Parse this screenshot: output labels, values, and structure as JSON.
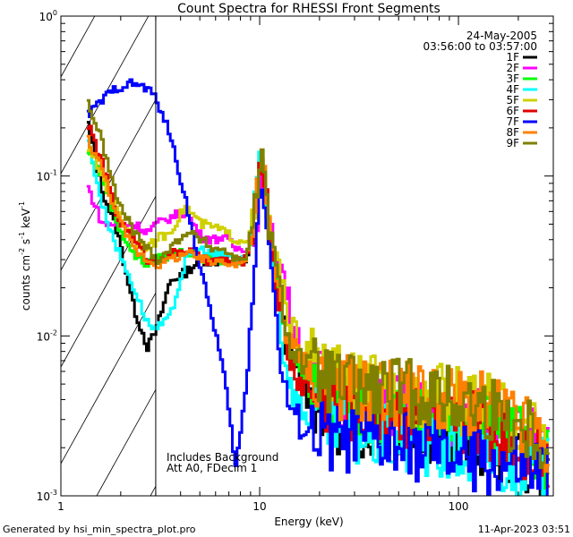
{
  "chart_data": {
    "type": "line",
    "title": "Count Spectra for RHESSI Front Segments",
    "xlabel": "Energy (keV)",
    "ylabel_main": "counts cm",
    "ylabel_sup1": "-2",
    "ylabel_mid": " s",
    "ylabel_sup2": "-1",
    "ylabel_mid2": " keV",
    "ylabel_sup3": "-1",
    "xscale": "log",
    "yscale": "log",
    "xlim": [
      1,
      300
    ],
    "ylim": [
      0.001,
      1
    ],
    "x_ticks": [
      {
        "value": 1,
        "label": "1"
      },
      {
        "value": 10,
        "label": "10"
      },
      {
        "value": 100,
        "label": "100"
      }
    ],
    "y_ticks": [
      {
        "value": 1,
        "base": "10",
        "exp": "0"
      },
      {
        "value": 0.1,
        "base": "10",
        "exp": "-1"
      },
      {
        "value": 0.01,
        "base": "10",
        "exp": "-2"
      },
      {
        "value": 0.001,
        "base": "10",
        "exp": "-3"
      }
    ],
    "attenuated_region": {
      "xmin": 1,
      "xmax": 3
    },
    "legend_date": "24-May-2005",
    "legend_time": "03:56:00 to 03:57:00",
    "notes": [
      "Includes Background",
      "Att A0, FDecim 1"
    ],
    "series": [
      {
        "name": "1F",
        "color": "#000000",
        "lx": [
          1.35,
          1.6,
          1.9,
          2.3,
          2.7,
          3,
          3.5,
          4.2,
          5,
          5.8,
          6.5,
          7.5,
          8.5,
          9.3,
          10,
          10.4,
          11,
          12,
          13,
          14,
          16,
          18,
          21,
          24,
          28,
          33,
          40,
          50,
          60,
          75,
          90,
          110,
          140,
          180,
          230,
          280
        ],
        "ly": [
          0.21,
          0.08,
          0.045,
          0.015,
          0.0085,
          0.011,
          0.022,
          0.025,
          0.03,
          0.029,
          0.03,
          0.028,
          0.03,
          0.05,
          0.13,
          0.095,
          0.05,
          0.023,
          0.012,
          0.007,
          0.005,
          0.004,
          0.0035,
          0.003,
          0.003,
          0.0028,
          0.0028,
          0.0026,
          0.0025,
          0.0026,
          0.0024,
          0.0023,
          0.0021,
          0.0019,
          0.0016,
          0.0013
        ]
      },
      {
        "name": "2F",
        "color": "#ff00ff",
        "lx": [
          1.35,
          1.6,
          1.9,
          2.3,
          2.7,
          3,
          3.5,
          4.2,
          5,
          5.8,
          6.5,
          7.5,
          8.5,
          9.3,
          10,
          10.4,
          11,
          12,
          13,
          14,
          16,
          18,
          21,
          24,
          28,
          33,
          40,
          50,
          60,
          75,
          90,
          110,
          140,
          180,
          230,
          280
        ],
        "ly": [
          0.085,
          0.05,
          0.05,
          0.05,
          0.045,
          0.05,
          0.055,
          0.06,
          0.042,
          0.04,
          0.042,
          0.035,
          0.036,
          0.04,
          0.09,
          0.085,
          0.045,
          0.035,
          0.025,
          0.014,
          0.009,
          0.006,
          0.005,
          0.0045,
          0.004,
          0.0038,
          0.0038,
          0.0036,
          0.0034,
          0.0033,
          0.0032,
          0.003,
          0.0028,
          0.0025,
          0.0022,
          0.0019
        ]
      },
      {
        "name": "3F",
        "color": "#00ff00",
        "lx": [
          1.35,
          1.6,
          1.9,
          2.3,
          2.7,
          3,
          3.5,
          4.2,
          5,
          5.8,
          6.5,
          7.5,
          8.5,
          9.3,
          10,
          10.4,
          11,
          12,
          13,
          14,
          16,
          18,
          21,
          24,
          28,
          33,
          40,
          50,
          60,
          75,
          90,
          110,
          140,
          180,
          230,
          280
        ],
        "ly": [
          0.14,
          0.1,
          0.05,
          0.032,
          0.028,
          0.03,
          0.032,
          0.034,
          0.031,
          0.03,
          0.03,
          0.028,
          0.03,
          0.055,
          0.13,
          0.1,
          0.05,
          0.025,
          0.013,
          0.008,
          0.006,
          0.005,
          0.0045,
          0.004,
          0.0038,
          0.0036,
          0.0035,
          0.0034,
          0.0033,
          0.0032,
          0.003,
          0.0028,
          0.0026,
          0.0023,
          0.002,
          0.0017
        ]
      },
      {
        "name": "4F",
        "color": "#00ffff",
        "lx": [
          1.35,
          1.6,
          1.9,
          2.3,
          2.7,
          3,
          3.5,
          4.2,
          5,
          5.8,
          6.5,
          7.5,
          8.5,
          9.3,
          10,
          10.4,
          11,
          12,
          13,
          14,
          16,
          18,
          21,
          24,
          28,
          33,
          40,
          50,
          60,
          75,
          90,
          110,
          140,
          180,
          230,
          280
        ],
        "ly": [
          0.17,
          0.065,
          0.035,
          0.02,
          0.012,
          0.011,
          0.013,
          0.03,
          0.035,
          0.032,
          0.032,
          0.03,
          0.032,
          0.06,
          0.16,
          0.11,
          0.05,
          0.018,
          0.008,
          0.005,
          0.0035,
          0.003,
          0.0028,
          0.0026,
          0.0025,
          0.0024,
          0.0023,
          0.0022,
          0.0021,
          0.002,
          0.0019,
          0.0018,
          0.0017,
          0.0016,
          0.0015,
          0.0014
        ]
      },
      {
        "name": "5F",
        "color": "#d0d000",
        "lx": [
          1.35,
          1.6,
          1.9,
          2.3,
          2.7,
          3,
          3.5,
          4.2,
          5,
          5.8,
          6.5,
          7.5,
          8.5,
          9.3,
          10,
          10.4,
          11,
          12,
          13,
          14,
          16,
          18,
          21,
          24,
          28,
          33,
          40,
          50,
          60,
          75,
          90,
          110,
          140,
          180,
          230,
          280
        ],
        "ly": [
          0.15,
          0.1,
          0.06,
          0.04,
          0.035,
          0.04,
          0.045,
          0.065,
          0.05,
          0.048,
          0.045,
          0.04,
          0.04,
          0.055,
          0.12,
          0.1,
          0.05,
          0.03,
          0.018,
          0.012,
          0.008,
          0.007,
          0.006,
          0.0055,
          0.005,
          0.0048,
          0.0046,
          0.0045,
          0.0044,
          0.0042,
          0.004,
          0.0038,
          0.0035,
          0.003,
          0.0026,
          0.0022
        ]
      },
      {
        "name": "6F",
        "color": "#e00000",
        "lx": [
          1.35,
          1.6,
          1.9,
          2.3,
          2.7,
          3,
          3.5,
          4.2,
          5,
          5.8,
          6.5,
          7.5,
          8.5,
          9.3,
          10,
          10.4,
          11,
          12,
          13,
          14,
          16,
          18,
          21,
          24,
          28,
          33,
          40,
          50,
          60,
          75,
          90,
          110,
          140,
          180,
          230,
          280
        ],
        "ly": [
          0.21,
          0.12,
          0.055,
          0.04,
          0.03,
          0.03,
          0.032,
          0.035,
          0.03,
          0.029,
          0.03,
          0.029,
          0.03,
          0.055,
          0.14,
          0.1,
          0.05,
          0.022,
          0.011,
          0.007,
          0.005,
          0.0045,
          0.004,
          0.0038,
          0.0036,
          0.0035,
          0.0034,
          0.0033,
          0.0032,
          0.003,
          0.0029,
          0.0028,
          0.0026,
          0.0023,
          0.002,
          0.0017
        ]
      },
      {
        "name": "7F",
        "color": "#0000ff",
        "lx": [
          1.35,
          1.6,
          1.9,
          2.3,
          2.7,
          3,
          3.5,
          4.2,
          5,
          5.8,
          6.5,
          7.5,
          8.5,
          9.3,
          10,
          10.4,
          11,
          12,
          13,
          14,
          16,
          18,
          21,
          24,
          28,
          33,
          40,
          50,
          60,
          75,
          90,
          110,
          140,
          180,
          230,
          280
        ],
        "ly": [
          0.24,
          0.3,
          0.36,
          0.38,
          0.35,
          0.3,
          0.18,
          0.07,
          0.025,
          0.012,
          0.006,
          0.0015,
          0.005,
          0.03,
          0.09,
          0.08,
          0.04,
          0.012,
          0.005,
          0.0035,
          0.0028,
          0.0025,
          0.0024,
          0.0023,
          0.0022,
          0.0022,
          0.0021,
          0.002,
          0.002,
          0.0019,
          0.0018,
          0.0017,
          0.0016,
          0.0015,
          0.0014,
          0.0013
        ]
      },
      {
        "name": "8F",
        "color": "#ff8000",
        "lx": [
          1.35,
          1.6,
          1.9,
          2.3,
          2.7,
          3,
          3.5,
          4.2,
          5,
          5.8,
          6.5,
          7.5,
          8.5,
          9.3,
          10,
          10.4,
          11,
          12,
          13,
          14,
          16,
          18,
          21,
          24,
          28,
          33,
          40,
          50,
          60,
          75,
          90,
          110,
          140,
          180,
          230,
          280
        ],
        "ly": [
          0.17,
          0.11,
          0.055,
          0.035,
          0.03,
          0.028,
          0.03,
          0.033,
          0.03,
          0.029,
          0.03,
          0.028,
          0.03,
          0.055,
          0.13,
          0.1,
          0.05,
          0.025,
          0.013,
          0.009,
          0.007,
          0.006,
          0.0055,
          0.005,
          0.0048,
          0.0046,
          0.0045,
          0.0044,
          0.0043,
          0.0042,
          0.004,
          0.0038,
          0.0035,
          0.003,
          0.0025,
          0.002
        ]
      },
      {
        "name": "9F",
        "color": "#808000",
        "lx": [
          1.35,
          1.6,
          1.9,
          2.3,
          2.7,
          3,
          3.5,
          4.2,
          5,
          5.8,
          6.5,
          7.5,
          8.5,
          9.3,
          10,
          10.4,
          11,
          12,
          13,
          14,
          16,
          18,
          21,
          24,
          28,
          33,
          40,
          50,
          60,
          75,
          90,
          110,
          140,
          180,
          230,
          280
        ],
        "ly": [
          0.29,
          0.16,
          0.07,
          0.045,
          0.035,
          0.03,
          0.035,
          0.045,
          0.04,
          0.035,
          0.035,
          0.03,
          0.032,
          0.06,
          0.13,
          0.1,
          0.05,
          0.025,
          0.014,
          0.009,
          0.007,
          0.006,
          0.0055,
          0.005,
          0.0048,
          0.0047,
          0.0046,
          0.0045,
          0.0044,
          0.0042,
          0.004,
          0.0038,
          0.0035,
          0.003,
          0.0026,
          0.0022
        ]
      }
    ]
  },
  "footer": {
    "generated_by": "Generated by hsi_min_spectra_plot.pro",
    "timestamp": "11-Apr-2023 03:51"
  }
}
